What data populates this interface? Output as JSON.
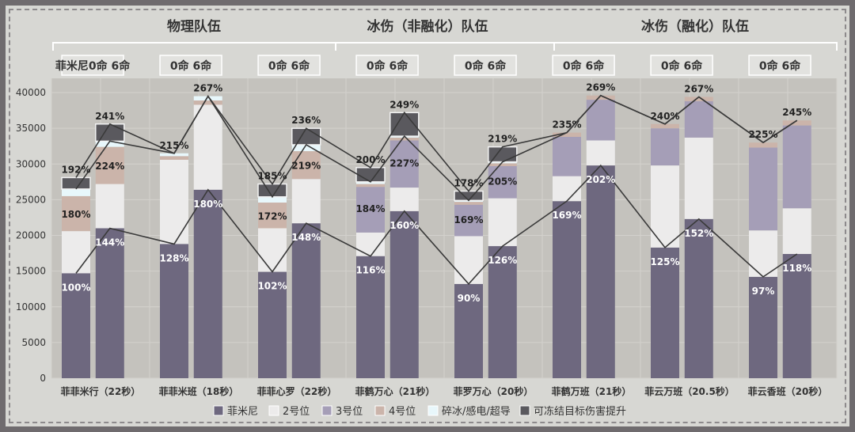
{
  "group_headers": [
    "物理队伍",
    "冰伤（非融化）队伍",
    "冰伤（融化）队伍"
  ],
  "colors": {
    "菲米尼": "#6e687f",
    "2号位": "#ecebeb",
    "3号位": "#a59eb7",
    "4号位": "#cbb4aa",
    "碎冰/感电/超导": "#e8f7fb",
    "可冻结目标伤害提升": "#5a595e",
    "line": "#3a3a3a",
    "plot_bg": "#c4c2bd"
  },
  "chart_data": {
    "type": "bar",
    "stacked": true,
    "ylim": [
      0,
      42000
    ],
    "yticks": [
      0,
      5000,
      10000,
      15000,
      20000,
      25000,
      30000,
      35000,
      40000
    ],
    "grid": true,
    "legend_position": "bottom",
    "categories": [
      "菲菲米行（22秒）",
      "菲菲米班（18秒）",
      "菲菲心罗（22秒）",
      "菲鹤万心（21秒）",
      "菲罗万心（20秒）",
      "菲鹤万班（21秒）",
      "菲云万班（20.5秒）",
      "菲云香班（20秒）"
    ],
    "subgroup_labels": [
      "菲米尼0命 6命",
      "0命 6命",
      "0命 6命",
      "0命 6命",
      "0命 6命",
      "0命 6命",
      "0命 6命",
      "0命 6命"
    ],
    "bar_variants": [
      "0命",
      "6命"
    ],
    "series": [
      {
        "name": "菲米尼",
        "values": [
          [
            14700,
            21000
          ],
          [
            18800,
            26400
          ],
          [
            14900,
            21700
          ],
          [
            17100,
            23400
          ],
          [
            13200,
            18500
          ],
          [
            24800,
            29800
          ],
          [
            18300,
            22300
          ],
          [
            14200,
            17400
          ]
        ]
      },
      {
        "name": "2号位",
        "values": [
          [
            5900,
            6200
          ],
          [
            11800,
            11900
          ],
          [
            6100,
            6200
          ],
          [
            3300,
            3300
          ],
          [
            6700,
            6700
          ],
          [
            3500,
            3500
          ],
          [
            11500,
            11400
          ],
          [
            6500,
            6400
          ]
        ]
      },
      {
        "name": "3号位",
        "values": [
          [
            0,
            0
          ],
          [
            0,
            0
          ],
          [
            0,
            0
          ],
          [
            6400,
            6600
          ],
          [
            4400,
            4500
          ],
          [
            5500,
            5700
          ],
          [
            5200,
            5100
          ],
          [
            11600,
            11600
          ]
        ]
      },
      {
        "name": "4号位",
        "values": [
          [
            4900,
            5200
          ],
          [
            500,
            600
          ],
          [
            3600,
            3900
          ],
          [
            400,
            400
          ],
          [
            400,
            400
          ],
          [
            600,
            600
          ],
          [
            600,
            600
          ],
          [
            700,
            700
          ]
        ]
      },
      {
        "name": "碎冰/感电/超导",
        "values": [
          [
            1000,
            800
          ],
          [
            400,
            600
          ],
          [
            800,
            900
          ],
          [
            300,
            200
          ],
          [
            200,
            200
          ],
          [
            0,
            0
          ],
          [
            0,
            0
          ],
          [
            0,
            0
          ]
        ]
      },
      {
        "name": "可冻结目标伤害提升",
        "values": [
          [
            1600,
            2400
          ],
          [
            0,
            0
          ],
          [
            1800,
            2300
          ],
          [
            2000,
            3300
          ],
          [
            1300,
            2100
          ],
          [
            0,
            0
          ],
          [
            0,
            0
          ],
          [
            0,
            0
          ]
        ]
      }
    ],
    "labels_fimini": [
      [
        "100%",
        "144%"
      ],
      [
        "128%",
        "180%"
      ],
      [
        "102%",
        "148%"
      ],
      [
        "116%",
        "160%"
      ],
      [
        "90%",
        "126%"
      ],
      [
        "169%",
        "202%"
      ],
      [
        "125%",
        "152%"
      ],
      [
        "97%",
        "118%"
      ]
    ],
    "labels_mid": [
      [
        "180%",
        "224%"
      ],
      [
        "",
        ""
      ],
      [
        "172%",
        "219%"
      ],
      [
        "184%",
        "227%"
      ],
      [
        "169%",
        "205%"
      ],
      [
        "",
        ""
      ],
      [
        "",
        ""
      ],
      [
        "",
        ""
      ]
    ],
    "labels_total": [
      [
        "192%",
        "241%"
      ],
      [
        "215%",
        "267%"
      ],
      [
        "185%",
        "236%"
      ],
      [
        "200%",
        "249%"
      ],
      [
        "178%",
        "219%"
      ],
      [
        "235%",
        "269%"
      ],
      [
        "240%",
        "267%"
      ],
      [
        "225%",
        "245%"
      ]
    ]
  }
}
